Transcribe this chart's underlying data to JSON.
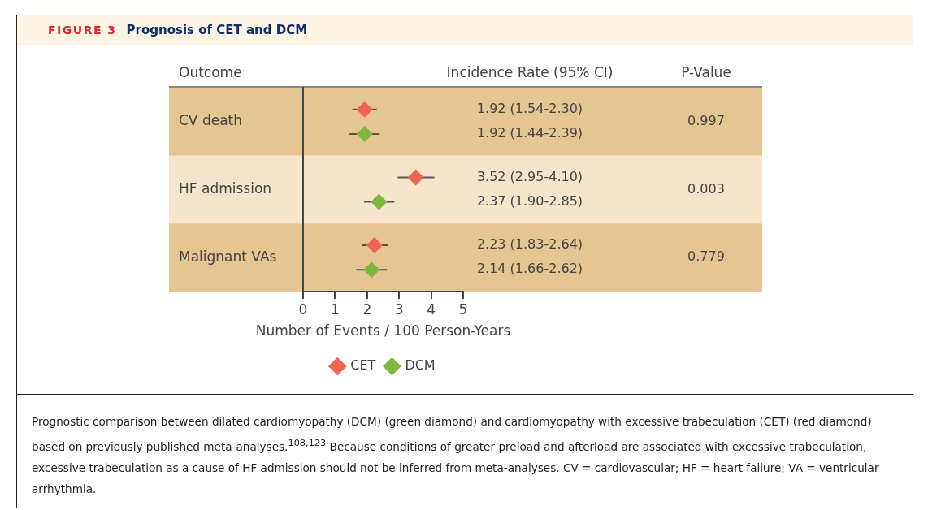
{
  "chart_data": {
    "type": "scatter",
    "orientation": "horizontal",
    "title": "Prognosis of CET and DCM",
    "xlabel": "Number of Events / 100 Person-Years",
    "categories": [
      "CV death",
      "HF admission",
      "Malignant VAs"
    ],
    "series": [
      {
        "name": "CET",
        "color": "#f0654f",
        "values": [
          1.92,
          3.52,
          2.23
        ],
        "errors": [
          [
            1.54,
            2.3
          ],
          [
            2.95,
            4.1
          ],
          [
            1.83,
            2.64
          ]
        ]
      },
      {
        "name": "DCM",
        "color": "#7fb640",
        "values": [
          1.92,
          2.37,
          2.14
        ],
        "errors": [
          [
            1.44,
            2.39
          ],
          [
            1.9,
            2.85
          ],
          [
            1.66,
            2.62
          ]
        ]
      }
    ],
    "bands": [
      {
        "axis": "y",
        "from": "CV death",
        "to": "CV death",
        "color": "#e5c592"
      },
      {
        "axis": "y",
        "from": "HF admission",
        "to": "HF admission",
        "color": "#f5e6cb"
      },
      {
        "axis": "y",
        "from": "Malignant VAs",
        "to": "Malignant VAs",
        "color": "#e5c592"
      }
    ],
    "xlim": [
      0,
      5
    ],
    "xticks": [
      0,
      1,
      2,
      3,
      4,
      5
    ],
    "grid": false,
    "legend": "bottom",
    "marker": "diamond",
    "annotations": [
      "FIGURE 3",
      "Outcome",
      "Incidence Rate (95% CI)",
      "P-Value",
      "1.92 (1.54-2.30)",
      "1.92 (1.44-2.39)",
      "0.997",
      "3.52 (2.95-4.10)",
      "2.37 (1.90-2.85)",
      "0.003",
      "2.23 (1.83-2.64)",
      "2.14 (1.66-2.62)",
      "0.779",
      "Prognostic comparison between dilated cardiomyopathy (DCM) (green diamond) and cardiomyopathy with excessive trabeculation (CET) (red diamond) based on previously published meta-analyses.$^{108,123}$ Because conditions of greater preload and afterload are associated with excessive trabeculation, excessive trabeculation as a cause of HF admission should not be inferred from meta-analyses. CV = cardiovascular; HF = heart failure; VA = ventricular arrhythmia."
    ]
  }
}
